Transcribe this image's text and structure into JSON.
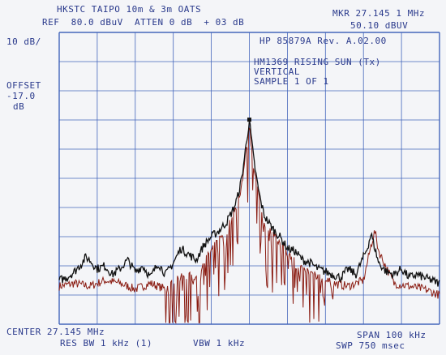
{
  "header": {
    "title": "HKSTC TAIPO 10m & 3m OATS",
    "ref_line": "REF  80.0 dBuV  ATTEN 0 dB  + 03 dB",
    "marker_label": "MKR 27.145 1 MHz",
    "marker_value": "50.10 dBUV"
  },
  "left": {
    "scale": "10 dB/",
    "offset_label": "OFFSET",
    "offset_value": "-17.0",
    "offset_unit": "dB"
  },
  "annotation": {
    "instrument": "HP 85879A Rev. A.02.00",
    "device": "HM1369 RISING SUN (Tx)",
    "polarization": "VERTICAL",
    "sample": "SAMPLE 1 OF 1"
  },
  "footer": {
    "center": "CENTER 27.145 MHz",
    "res_bw": "RES BW 1 kHz (1)",
    "vbw": "VBW 1 kHz",
    "span": "SPAN 100 kHz",
    "sweep": "SWP 750 msec"
  },
  "colors": {
    "background": "#f4f5f8",
    "grid": "#4466bb",
    "text": "#2a3a8c",
    "trace_max": "#111111",
    "trace_sample": "#8a1c12"
  },
  "chart_data": {
    "type": "line",
    "xlabel": "",
    "ylabel": "",
    "x_center_mhz": 27.145,
    "x_span_khz": 100,
    "xlim_khz": [
      -50,
      50
    ],
    "ylim_dbuv": [
      -20,
      80
    ],
    "grid": true,
    "marker": {
      "x_khz": 0,
      "y_dbuv": 50.1
    },
    "series": [
      {
        "x": [
          -50,
          -48,
          -46,
          -44,
          -43,
          -42,
          -40,
          -38,
          -36,
          -34,
          -32,
          -30,
          -28,
          -26,
          -24,
          -22,
          -20,
          -18,
          -16,
          -14,
          -12,
          -10,
          -8,
          -6,
          -4,
          -3,
          -2,
          -1,
          0,
          1,
          2,
          3,
          4,
          6,
          8,
          10,
          12,
          14,
          16,
          18,
          20,
          22,
          24,
          26,
          28,
          30,
          31,
          32,
          33,
          34,
          36,
          38,
          40,
          42,
          44,
          46,
          48,
          50
        ],
        "values": [
          -5,
          -4,
          -2,
          1,
          3,
          2,
          -1,
          0,
          -3,
          -1,
          2,
          -2,
          0,
          -4,
          1,
          -3,
          1,
          6,
          4,
          2,
          7,
          10,
          12,
          15,
          20,
          24,
          30,
          40,
          50,
          38,
          29,
          22,
          17,
          13,
          10,
          6,
          5,
          2,
          1,
          -1,
          -2,
          -3,
          -4,
          -1,
          -3,
          3,
          6,
          11,
          6,
          1,
          -2,
          -3,
          -1,
          -4,
          -3,
          -4,
          -5,
          -6
        ]
      },
      {
        "x": [
          -50,
          -46,
          -42,
          -38,
          -34,
          -30,
          -26,
          -22,
          -18,
          -14,
          -10,
          -8,
          -6,
          -4,
          -3,
          -2,
          -1,
          0,
          1,
          2,
          3,
          4,
          6,
          8,
          10,
          14,
          18,
          22,
          26,
          30,
          32,
          33,
          34,
          38,
          42,
          46,
          50
        ],
        "values": [
          -7,
          -6,
          -7,
          -5,
          -6,
          -8,
          -6,
          -8,
          -4,
          -3,
          5,
          9,
          12,
          18,
          22,
          28,
          38,
          48,
          36,
          27,
          20,
          15,
          11,
          8,
          4,
          -1,
          -4,
          -6,
          -7,
          -5,
          7,
          12,
          5,
          -6,
          -7,
          -8,
          -10
        ]
      }
    ]
  }
}
